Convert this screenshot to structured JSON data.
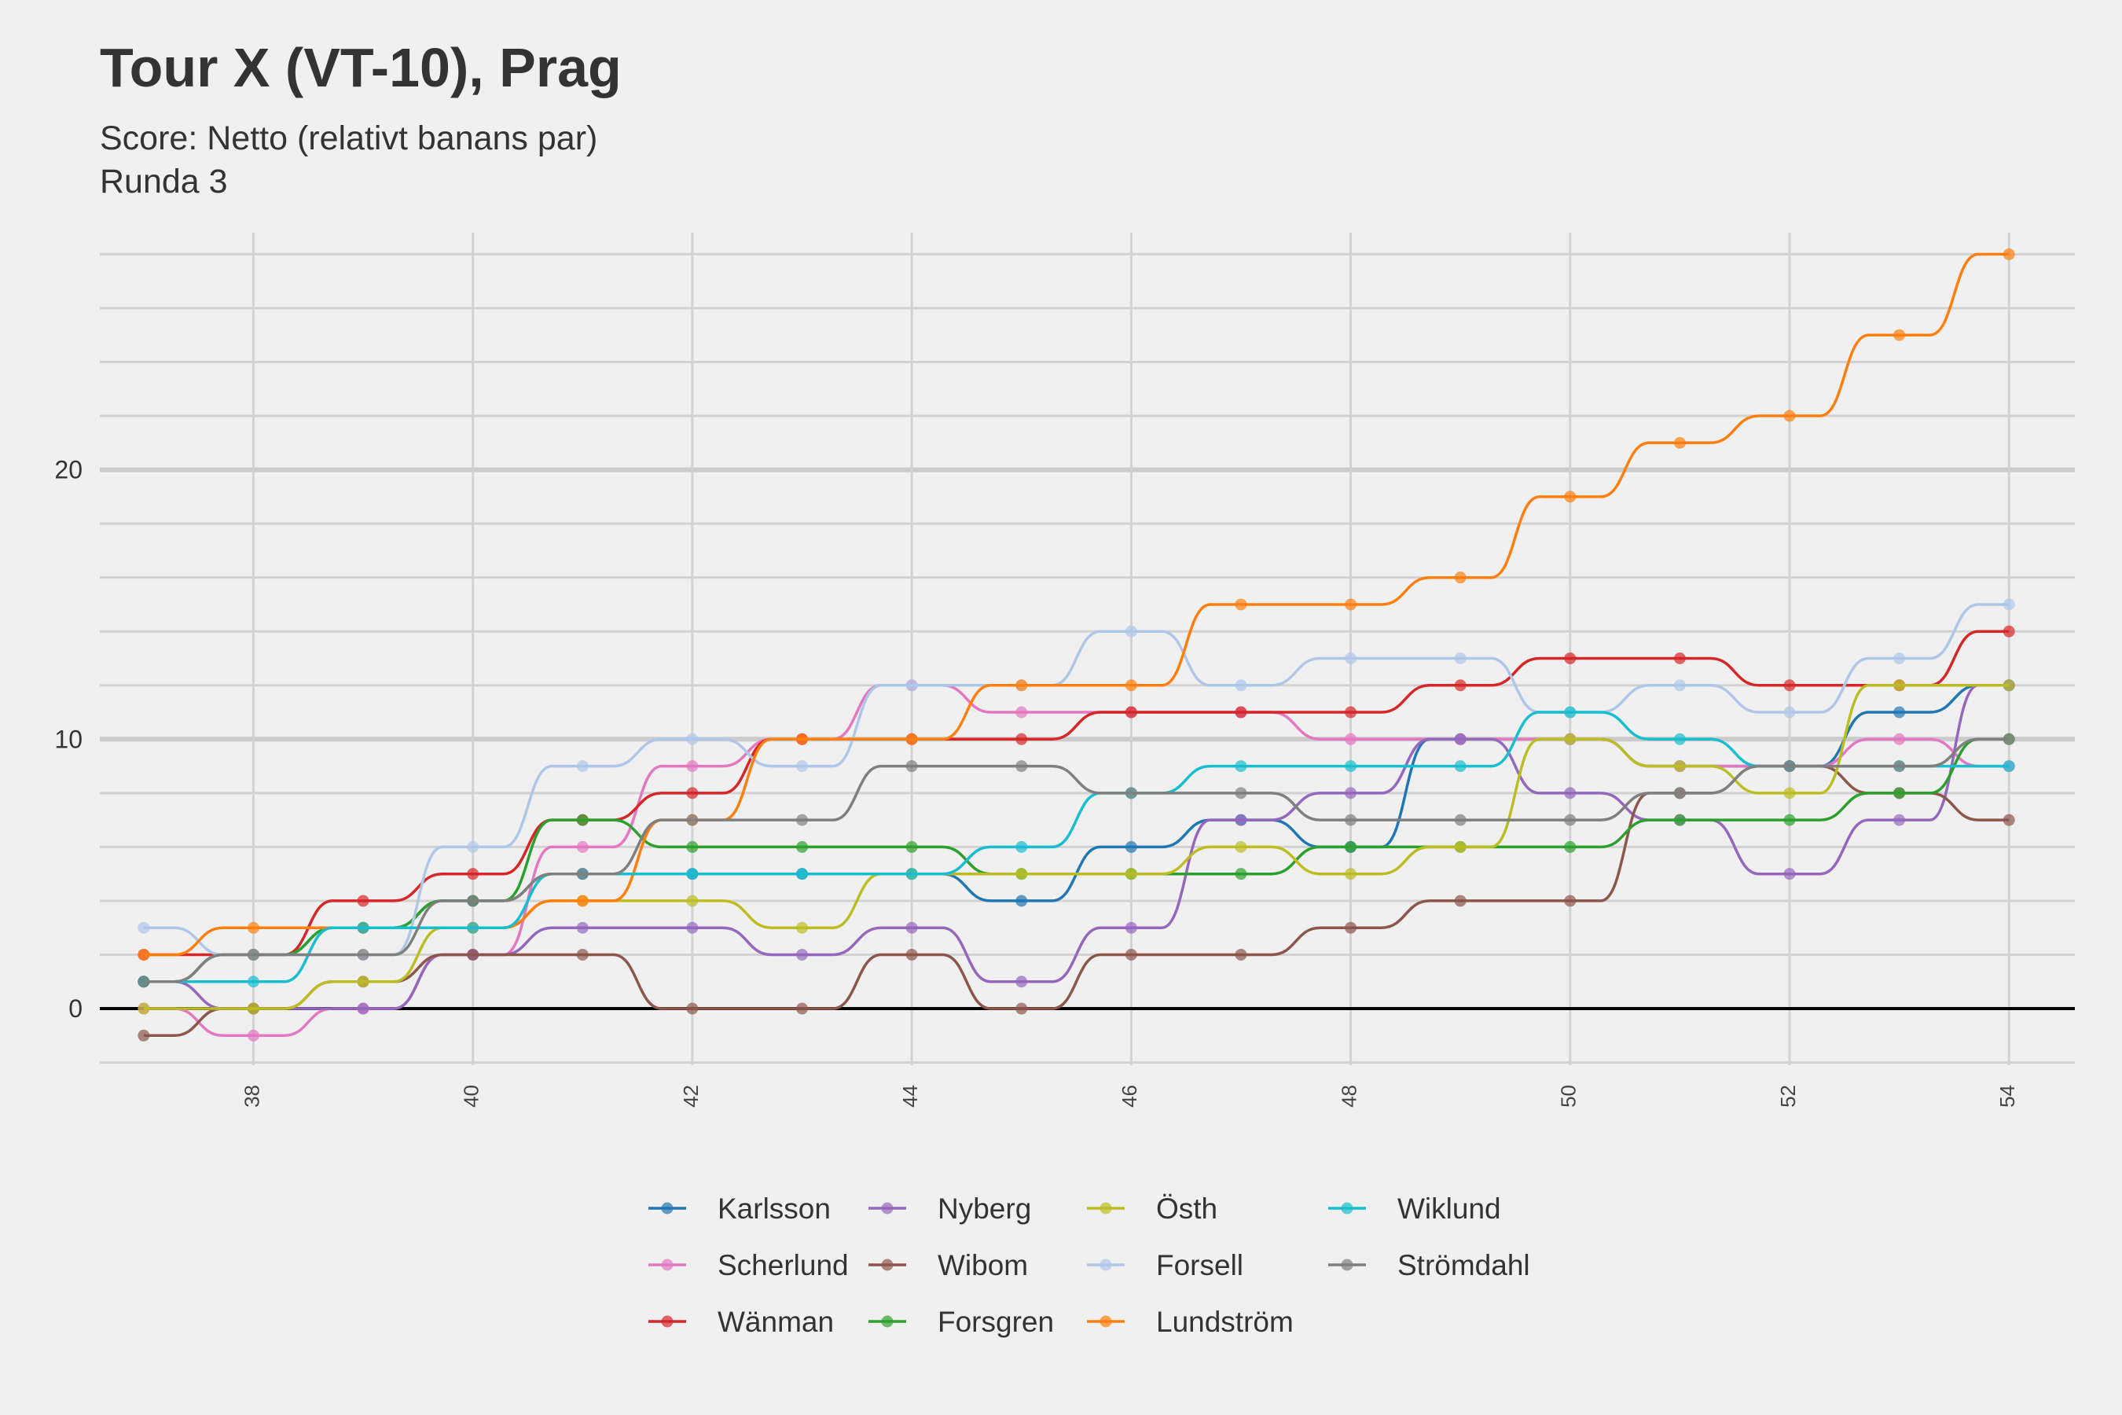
{
  "chart_data": {
    "type": "line",
    "title": "Tour X (VT-10), Prag",
    "subtitle": [
      "Score: Netto (relativt banans par)",
      "Runda 3"
    ],
    "xlabel": "",
    "ylabel": "",
    "xlim": [
      36.6,
      54.6
    ],
    "ylim": [
      -2.1,
      28.8
    ],
    "x_ticks": [
      38,
      40,
      42,
      44,
      46,
      48,
      50,
      52,
      54
    ],
    "y_ticks": [
      0,
      10,
      20
    ],
    "grid": true,
    "legend_position": "bottom",
    "x": [
      37,
      38,
      39,
      40,
      41,
      42,
      43,
      44,
      45,
      46,
      47,
      48,
      49,
      50,
      51,
      52,
      53,
      54
    ],
    "series": [
      {
        "name": "Karlsson",
        "color": "#1f77b4",
        "values": [
          1,
          2,
          3,
          4,
          5,
          5,
          5,
          5,
          4,
          6,
          7,
          6,
          10,
          10,
          9,
          9,
          11,
          12
        ]
      },
      {
        "name": "Scherlund",
        "color": "#e377c2",
        "values": [
          0,
          -1,
          0,
          2,
          6,
          9,
          10,
          12,
          11,
          11,
          11,
          10,
          10,
          10,
          9,
          9,
          10,
          9
        ]
      },
      {
        "name": "Wänman",
        "color": "#d62728",
        "values": [
          2,
          2,
          4,
          5,
          7,
          8,
          10,
          10,
          10,
          11,
          11,
          11,
          12,
          13,
          13,
          12,
          12,
          14
        ]
      },
      {
        "name": "Nyberg",
        "color": "#9467bd",
        "values": [
          1,
          0,
          0,
          2,
          3,
          3,
          2,
          3,
          1,
          3,
          7,
          8,
          10,
          8,
          7,
          5,
          7,
          12
        ]
      },
      {
        "name": "Wibom",
        "color": "#8c564b",
        "values": [
          -1,
          0,
          1,
          2,
          2,
          0,
          0,
          2,
          0,
          2,
          2,
          3,
          4,
          4,
          8,
          9,
          8,
          7
        ]
      },
      {
        "name": "Forsgren",
        "color": "#2ca02c",
        "values": [
          1,
          2,
          3,
          4,
          7,
          6,
          6,
          6,
          5,
          5,
          5,
          6,
          6,
          6,
          7,
          7,
          8,
          10
        ]
      },
      {
        "name": "Östh",
        "color": "#bcbd22",
        "values": [
          0,
          0,
          1,
          3,
          4,
          4,
          3,
          5,
          5,
          5,
          6,
          5,
          6,
          10,
          9,
          8,
          12,
          12
        ]
      },
      {
        "name": "Forsell",
        "color": "#aec7e8",
        "values": [
          3,
          2,
          2,
          6,
          9,
          10,
          9,
          12,
          12,
          14,
          12,
          13,
          13,
          11,
          12,
          11,
          13,
          15
        ]
      },
      {
        "name": "Lundström",
        "color": "#ff7f0e",
        "values": [
          2,
          3,
          3,
          3,
          4,
          7,
          10,
          10,
          12,
          12,
          15,
          15,
          16,
          19,
          21,
          22,
          25,
          28
        ]
      },
      {
        "name": "Wiklund",
        "color": "#17becf",
        "values": [
          1,
          1,
          3,
          3,
          5,
          5,
          5,
          5,
          6,
          8,
          9,
          9,
          9,
          11,
          10,
          9,
          9,
          9
        ]
      },
      {
        "name": "Strömdahl",
        "color": "#7f7f7f",
        "values": [
          1,
          2,
          2,
          4,
          5,
          7,
          7,
          9,
          9,
          8,
          8,
          7,
          7,
          7,
          8,
          9,
          9,
          10
        ]
      }
    ],
    "legend_columns": [
      [
        "Karlsson",
        "Scherlund",
        "Wänman"
      ],
      [
        "Nyberg",
        "Wibom",
        "Forsgren"
      ],
      [
        "Östh",
        "Forsell",
        "Lundström"
      ],
      [
        "Wiklund",
        "Strömdahl"
      ]
    ]
  }
}
